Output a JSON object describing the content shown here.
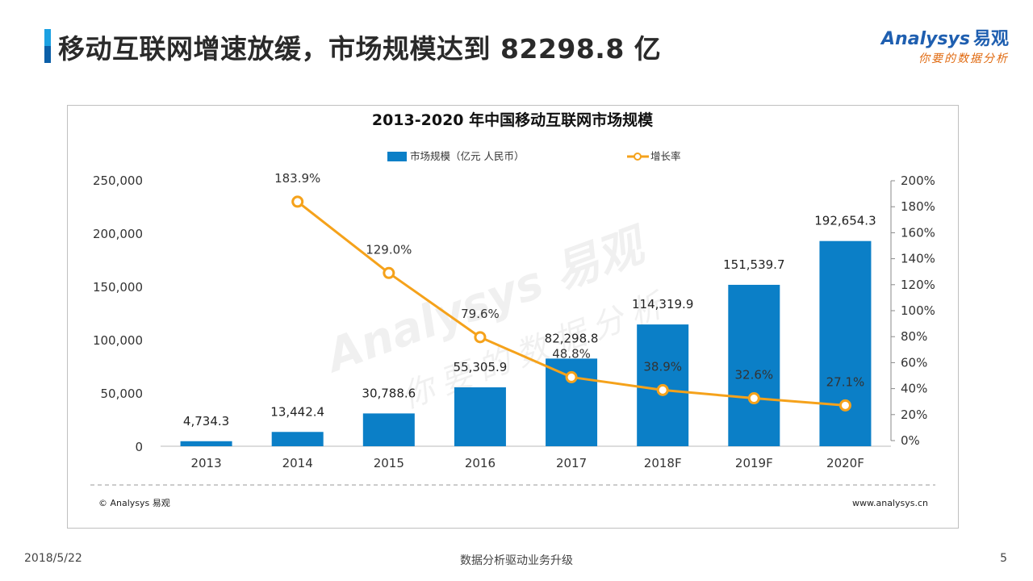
{
  "header": {
    "title": "移动互联网增速放缓，市场规模达到 82298.8 亿"
  },
  "logo": {
    "brand_en": "Analysys",
    "brand_cn": "易观",
    "slogan": "你要的数据分析"
  },
  "watermark": {
    "text_en": "Analysys 易观",
    "text_cn": "你要的数据分析"
  },
  "footer": {
    "date": "2018/5/22",
    "center": "数据分析驱动业务升级",
    "page": "5",
    "copyright": "© Analysys 易观",
    "website": "www.analysys.cn"
  },
  "colors": {
    "bar": "#0b7fc7",
    "line": "#f5a21b",
    "marker_fill": "#ffffff",
    "axis_text": "#333333",
    "accent_logo_blue": "#1f5fb0",
    "accent_logo_orange": "#e06a10"
  },
  "chart_data": {
    "type": "bar",
    "title": "2013-2020 年中国移动互联网市场规模",
    "categories": [
      "2013",
      "2014",
      "2015",
      "2016",
      "2017",
      "2018F",
      "2019F",
      "2020F"
    ],
    "series": [
      {
        "name": "市场规模（亿元 人民币）",
        "type": "bar",
        "axis": "left",
        "values": [
          4734.3,
          13442.4,
          30788.6,
          55305.9,
          82298.8,
          114319.9,
          151539.7,
          192654.3
        ],
        "labels": [
          "4,734.3",
          "13,442.4",
          "30,788.6",
          "55,305.9",
          "82,298.8",
          "114,319.9",
          "151,539.7",
          "192,654.3"
        ]
      },
      {
        "name": "增长率",
        "type": "line",
        "axis": "right",
        "values": [
          null,
          183.9,
          129.0,
          79.6,
          48.8,
          38.9,
          32.6,
          27.1
        ],
        "labels": [
          "",
          "183.9%",
          "129.0%",
          "79.6%",
          "48.8%",
          "38.9%",
          "32.6%",
          "27.1%"
        ]
      }
    ],
    "y_left": {
      "ylim": [
        0,
        250000
      ],
      "ticks": [
        0,
        50000,
        100000,
        150000,
        200000,
        250000
      ],
      "tick_labels": [
        "0",
        "50,000",
        "100,000",
        "150,000",
        "200,000",
        "250,000"
      ]
    },
    "y_right": {
      "ylim": [
        0,
        200
      ],
      "ticks": [
        0,
        20,
        40,
        60,
        80,
        100,
        120,
        140,
        160,
        180,
        200
      ],
      "tick_labels": [
        "0%",
        "20%",
        "40%",
        "60%",
        "80%",
        "100%",
        "120%",
        "140%",
        "160%",
        "180%",
        "200%"
      ]
    },
    "legend_position": "top",
    "grid": false
  }
}
